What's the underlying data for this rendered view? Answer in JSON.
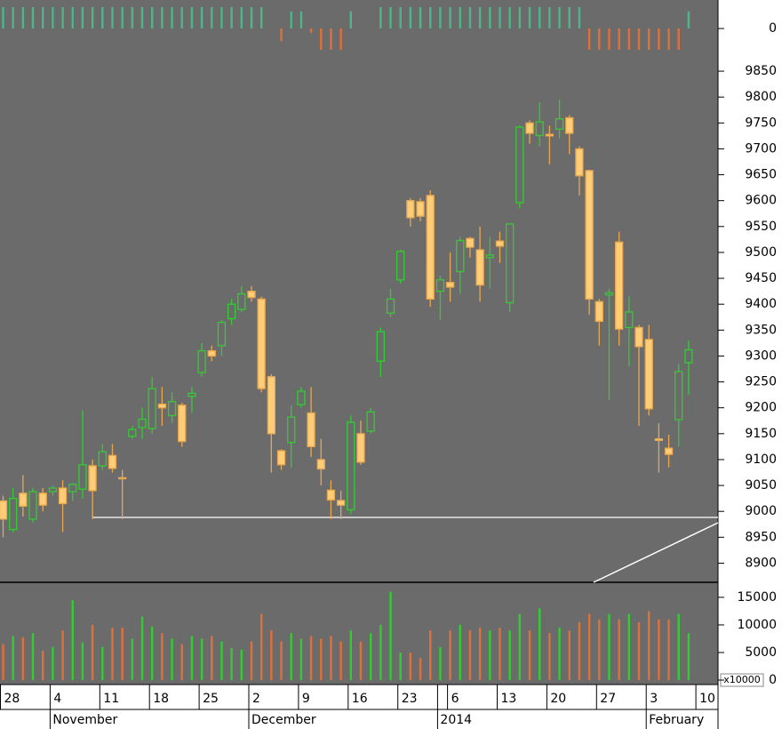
{
  "chart_data": [
    {
      "type": "bar",
      "values": [
        1,
        1,
        1,
        1,
        1,
        1,
        1,
        1,
        1,
        1,
        1,
        1,
        1,
        1,
        1,
        1,
        1,
        1,
        1,
        1,
        1,
        1,
        1,
        1,
        1,
        1,
        1,
        0,
        -0.6,
        0.8,
        0.8,
        -0.2,
        -1,
        -1,
        -1,
        0.8,
        0,
        0,
        1,
        1,
        1,
        1,
        1,
        1,
        1,
        1,
        1,
        1,
        1,
        1,
        1,
        1,
        1,
        1,
        1,
        1,
        1,
        1,
        1,
        -1,
        -1,
        -1,
        -1,
        -1,
        -1,
        -1,
        -1,
        -1,
        -1,
        0.8,
        null
      ],
      "ylim": [
        -1.08,
        1.17
      ],
      "yticks": [
        0
      ],
      "up_color": "#4fb58a",
      "down_color": "#e0703a"
    },
    {
      "type": "candlestick",
      "categories": [
        "28",
        null,
        null,
        null,
        null,
        "4",
        null,
        null,
        null,
        null,
        "11",
        null,
        null,
        null,
        null,
        "18",
        null,
        null,
        null,
        null,
        "25",
        null,
        null,
        null,
        null,
        "2",
        null,
        null,
        null,
        null,
        "9",
        null,
        null,
        null,
        null,
        "16",
        null,
        null,
        null,
        null,
        "23",
        null,
        null,
        null,
        null,
        "6",
        null,
        null,
        null,
        null,
        "13",
        null,
        null,
        null,
        null,
        "20",
        null,
        null,
        null,
        null,
        "27",
        null,
        null,
        null,
        null,
        "3",
        null,
        null,
        null,
        null,
        "10"
      ],
      "month_labels": [
        null,
        null,
        null,
        null,
        null,
        "November",
        null,
        null,
        null,
        null,
        null,
        null,
        null,
        null,
        null,
        null,
        null,
        null,
        null,
        null,
        null,
        null,
        null,
        null,
        null,
        "December",
        null,
        null,
        null,
        null,
        null,
        null,
        null,
        null,
        null,
        null,
        null,
        null,
        null,
        null,
        null,
        null,
        null,
        null,
        "2014",
        null,
        null,
        null,
        null,
        null,
        null,
        null,
        null,
        null,
        null,
        null,
        null,
        null,
        null,
        null,
        null,
        null,
        null,
        null,
        null,
        "February",
        null,
        null,
        null,
        null,
        null
      ],
      "open": [
        9020,
        8965,
        9035,
        8985,
        9035,
        9038,
        9045,
        9038,
        9043,
        9088,
        9088,
        9108,
        9065,
        9145,
        9162,
        9160,
        9207,
        9185,
        9205,
        9222,
        9268,
        9310,
        9320,
        9372,
        9390,
        9425,
        9410,
        9260,
        9117,
        9133,
        9206,
        9190,
        9100,
        9041,
        9021,
        9003,
        9150,
        9155,
        9290,
        9383,
        9447,
        9600,
        9598,
        9610,
        9425,
        9442,
        9463,
        9527,
        9505,
        9490,
        9522,
        9403,
        9596,
        9750,
        9726,
        9728,
        9738,
        9760,
        9700,
        9658,
        9405,
        9418,
        9520,
        9355,
        9355,
        9332,
        9140,
        9122,
        9177,
        9287,
        null
      ],
      "high": [
        9030,
        9045,
        9070,
        9045,
        9045,
        9050,
        9060,
        9055,
        9195,
        9100,
        9130,
        9130,
        9080,
        9165,
        9200,
        9260,
        9240,
        9230,
        9210,
        9240,
        9325,
        9320,
        9370,
        9410,
        9435,
        9435,
        9415,
        9265,
        9120,
        9205,
        9240,
        9240,
        9140,
        9060,
        9040,
        9185,
        9175,
        9200,
        9355,
        9430,
        9505,
        9605,
        9605,
        9620,
        9455,
        9500,
        9530,
        9530,
        9550,
        9530,
        9540,
        9555,
        9745,
        9755,
        9790,
        9745,
        9795,
        9765,
        9705,
        9660,
        9410,
        9430,
        9540,
        9415,
        9360,
        9360,
        9170,
        9148,
        9285,
        9330,
        null
      ],
      "low": [
        8950,
        8960,
        8990,
        8978,
        9000,
        9030,
        8960,
        9020,
        9025,
        8985,
        9080,
        9075,
        8985,
        9140,
        9140,
        9150,
        9165,
        9170,
        9125,
        9190,
        9260,
        9290,
        9300,
        9360,
        9385,
        9405,
        9230,
        9075,
        9080,
        9085,
        9200,
        9105,
        9050,
        8985,
        8985,
        8995,
        9090,
        9150,
        9260,
        9375,
        9440,
        9550,
        9560,
        9395,
        9370,
        9405,
        9420,
        9490,
        9405,
        9430,
        9480,
        9385,
        9585,
        9710,
        9705,
        9670,
        9720,
        9690,
        9610,
        9380,
        9320,
        9215,
        9320,
        9280,
        9165,
        9185,
        9075,
        9085,
        9125,
        9225,
        null
      ],
      "close": [
        8985,
        9025,
        9010,
        9038,
        9012,
        9045,
        9015,
        9052,
        9090,
        9040,
        9115,
        9083,
        9063,
        9158,
        9178,
        9237,
        9200,
        9212,
        9135,
        9228,
        9310,
        9300,
        9365,
        9400,
        9420,
        9413,
        9237,
        9150,
        9090,
        9182,
        9232,
        9125,
        9082,
        9022,
        9012,
        9172,
        9095,
        9192,
        9347,
        9410,
        9502,
        9567,
        9570,
        9410,
        9447,
        9433,
        9523,
        9510,
        9437,
        9495,
        9512,
        9555,
        9742,
        9730,
        9752,
        9725,
        9758,
        9730,
        9648,
        9410,
        9367,
        9422,
        9352,
        9385,
        9318,
        9198,
        9137,
        9110,
        9270,
        9312,
        null
      ],
      "ylim": [
        8863,
        9881
      ],
      "yticks": [
        8900,
        8950,
        9000,
        9050,
        9100,
        9150,
        9200,
        9250,
        9300,
        9350,
        9400,
        9450,
        9500,
        9550,
        9600,
        9650,
        9700,
        9750,
        9800,
        9850
      ],
      "up_color": "#33cc33",
      "down_color": "#ffcc77"
    },
    {
      "type": "bar",
      "values": [
        6500,
        8000,
        7800,
        8500,
        5300,
        6000,
        9000,
        14500,
        6800,
        10000,
        6000,
        9500,
        9500,
        7500,
        11500,
        9700,
        8500,
        7500,
        6500,
        8000,
        7500,
        8000,
        7000,
        5800,
        5500,
        7000,
        12000,
        9000,
        7000,
        8500,
        7500,
        8000,
        7500,
        8000,
        7000,
        9000,
        7000,
        8500,
        10000,
        16000,
        5000,
        5000,
        4000,
        9000,
        6000,
        9000,
        10000,
        9000,
        9500,
        9000,
        9500,
        9000,
        12000,
        9000,
        13000,
        8500,
        9500,
        9000,
        10500,
        12000,
        11000,
        12000,
        11000,
        12000,
        10500,
        12500,
        11000,
        11000,
        12000,
        8500,
        null
      ],
      "ylim": [
        0,
        17400
      ],
      "yticks": [
        0,
        5000,
        10000,
        15000
      ],
      "unit_label": "x10000",
      "up_color": "#33cc33",
      "down_color": "#e0703a"
    }
  ]
}
